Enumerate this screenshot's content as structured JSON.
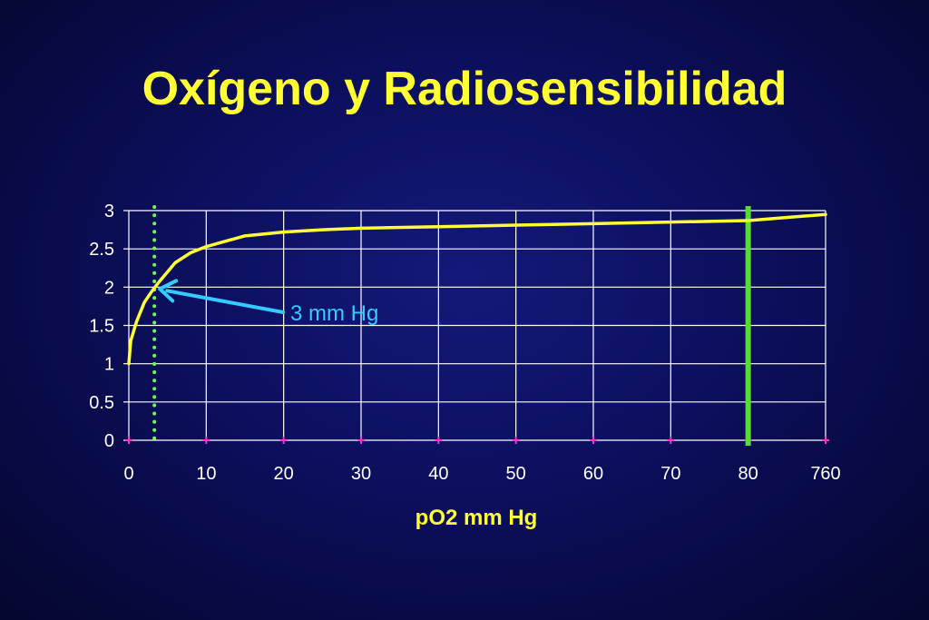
{
  "slide": {
    "title": "Oxígeno y Radiosensibilidad"
  },
  "colors": {
    "title": "#ffff33",
    "curve": "#ffff33",
    "grid": "#ffffff",
    "tick_text": "#ffffff",
    "xlabel": "#ffff33",
    "marker": "#ff33cc",
    "dotted_line": "#66ff44",
    "solid_line": "#55dd33",
    "arrow": "#33ccff"
  },
  "chart_data": {
    "type": "line",
    "title": "Oxígeno y Radiosensibilidad",
    "xlabel": "pO2 mm Hg",
    "ylabel": "",
    "categories": [
      "0",
      "10",
      "20",
      "30",
      "40",
      "50",
      "60",
      "70",
      "80",
      "760"
    ],
    "yticks": [
      "0",
      "0.5",
      "1",
      "1.5",
      "2",
      "2.5",
      "3"
    ],
    "ylim": [
      0,
      3
    ],
    "grid": true,
    "series": [
      {
        "points": [
          {
            "x": 0,
            "y": 1.0
          },
          {
            "x": 0.25,
            "y": 1.3
          },
          {
            "x": 1,
            "y": 1.55
          },
          {
            "x": 2,
            "y": 1.8
          },
          {
            "x": 3,
            "y": 1.95
          },
          {
            "x": 4,
            "y": 2.08
          },
          {
            "x": 5,
            "y": 2.2
          },
          {
            "x": 6,
            "y": 2.32
          },
          {
            "x": 8,
            "y": 2.45
          },
          {
            "x": 10,
            "y": 2.53
          },
          {
            "x": 15,
            "y": 2.67
          },
          {
            "x": 20,
            "y": 2.72
          },
          {
            "x": 25,
            "y": 2.75
          },
          {
            "x": 30,
            "y": 2.77
          },
          {
            "x": 40,
            "y": 2.79
          },
          {
            "x": 50,
            "y": 2.81
          },
          {
            "x": 60,
            "y": 2.83
          },
          {
            "x": 70,
            "y": 2.85
          },
          {
            "x": 80,
            "y": 2.87
          },
          {
            "x": 760,
            "y": 2.95
          }
        ]
      }
    ],
    "reference_lines": [
      {
        "x": 3.3,
        "style": "dotted"
      },
      {
        "x": 80,
        "style": "solid"
      }
    ],
    "annotations": [
      {
        "text": "3 mm Hg",
        "points_to": {
          "x": 3.3,
          "y": 2.0
        }
      }
    ]
  }
}
